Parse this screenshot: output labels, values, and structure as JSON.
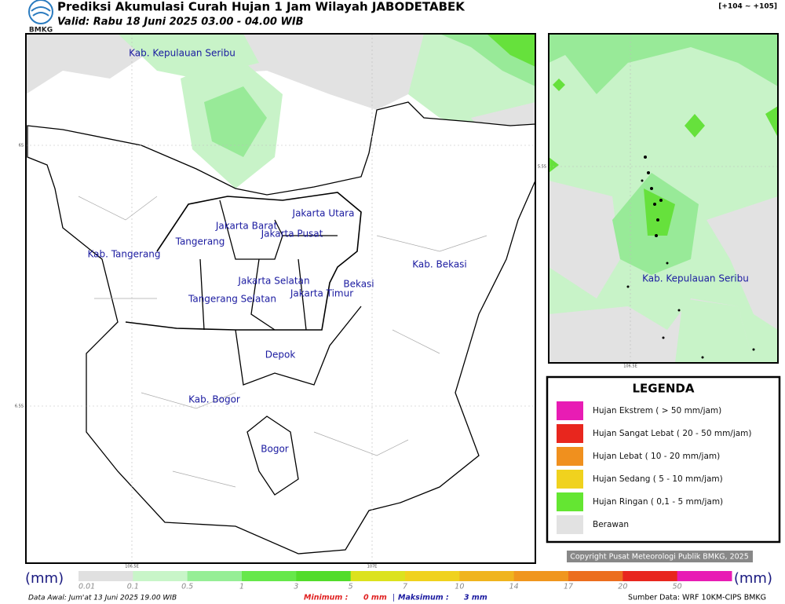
{
  "header": {
    "title": "Prediksi Akumulasi Curah Hujan 1 Jam Wilayah JABODETABEK",
    "subtitle": "Valid: Rabu 18 Juni 2025 03.00 - 04.00 WIB",
    "logo": "BMKG",
    "extent": "[+104 ~ +105]"
  },
  "map": {
    "labels": [
      "Kab. Kepulauan Seribu",
      "Jakarta Utara",
      "Jakarta Barat",
      "Jakarta Pusat",
      "Tangerang",
      "Kab. Tangerang",
      "Jakarta Selatan",
      "Jakarta Timur",
      "Bekasi",
      "Kab. Bekasi",
      "Tangerang Selatan",
      "Depok",
      "Kab. Bogor",
      "Bogor"
    ],
    "axis_labels": [
      "6S",
      "6.5S",
      "106.5E",
      "107E"
    ]
  },
  "inset": {
    "label": "Kab. Kepulauan Seribu",
    "axis_labels": [
      "5.5S",
      "106.5E"
    ]
  },
  "legend": {
    "title": "LEGENDA",
    "items": [
      "Hujan Ekstrem ( > 50 mm/jam)",
      "Hujan Sangat Lebat ( 20 - 50 mm/jam)",
      "Hujan Lebat ( 10 - 20 mm/jam)",
      "Hujan Sedang ( 5 - 10 mm/jam)",
      "Hujan Ringan ( 0,1 - 5 mm/jam)",
      "Berawan"
    ]
  },
  "copyright": "Copyright Pusat Meteorologi Publik BMKG, 2025",
  "colorbar": {
    "unit_left": "(mm)",
    "unit_right": "(mm)",
    "ticks": [
      "0.01",
      "0.1",
      "0.5",
      "1",
      "3",
      "5",
      "7",
      "10",
      "14",
      "17",
      "20",
      "50"
    ]
  },
  "footer": {
    "data_awal": "Data Awal: Jum'at 13 Juni 2025 19.00 WIB",
    "minimum_label": "Minimum :",
    "minimum_value": "0 mm",
    "separator": "|",
    "maksimum_label": "Maksimum :",
    "maksimum_value": "3 mm",
    "source": "Sumber Data: WRF 10KM-CIPS BMKG"
  }
}
